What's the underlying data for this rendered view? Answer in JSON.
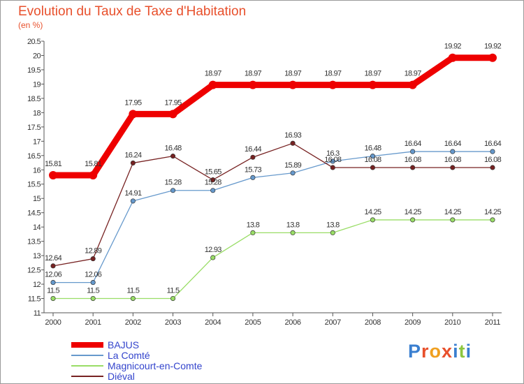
{
  "title": "Evolution du Taux de Taxe d'Habitation",
  "subtitle": "(en %)",
  "brand": "Proxiti",
  "chart_data": {
    "type": "line",
    "x": [
      "2000",
      "2001",
      "2002",
      "2003",
      "2004",
      "2005",
      "2006",
      "2007",
      "2008",
      "2009",
      "2010",
      "2011"
    ],
    "ylim": [
      11,
      20.5
    ],
    "yticks": [
      "11",
      "11.5",
      "12",
      "12.5",
      "13",
      "13.5",
      "14",
      "14.5",
      "15",
      "15.5",
      "16",
      "16.5",
      "17",
      "17.5",
      "18",
      "18.5",
      "19",
      "19.5",
      "20",
      "20.5"
    ],
    "grid": false,
    "series": [
      {
        "name": "BAJUS",
        "color": "#ee0000",
        "values": [
          15.81,
          15.81,
          17.95,
          17.95,
          18.97,
          18.97,
          18.97,
          18.97,
          18.97,
          18.97,
          19.92,
          19.92
        ],
        "labels": [
          "15.81",
          "15.81",
          "17.95",
          "17.95",
          "18.97",
          "18.97",
          "18.97",
          "18.97",
          "18.97",
          "18.97",
          "19.92",
          "19.92"
        ]
      },
      {
        "name": "La Comté",
        "color": "#6699cc",
        "values": [
          12.06,
          12.06,
          14.91,
          15.28,
          15.28,
          15.73,
          15.89,
          16.3,
          16.48,
          16.64,
          16.64,
          16.64
        ],
        "labels": [
          "12.06",
          "12.06",
          "14.91",
          "15.28",
          "15.28",
          "15.73",
          "15.89",
          "16.3",
          "16.48",
          "16.64",
          "16.64",
          "16.64"
        ]
      },
      {
        "name": "Magnicourt-en-Comte",
        "color": "#99dd66",
        "values": [
          11.5,
          11.5,
          11.5,
          11.5,
          12.93,
          13.8,
          13.8,
          13.8,
          14.25,
          14.25,
          14.25,
          14.25
        ],
        "labels": [
          "11.5",
          "11.5",
          "11.5",
          "11.5",
          "12.93",
          "13.8",
          "13.8",
          "13.8",
          "14.25",
          "14.25",
          "14.25",
          "14.25"
        ]
      },
      {
        "name": "Diéval",
        "color": "#772222",
        "values": [
          12.64,
          12.89,
          16.24,
          16.48,
          15.65,
          16.44,
          16.93,
          16.08,
          16.08,
          16.08,
          16.08,
          16.08
        ],
        "labels": [
          "12.64",
          "12.89",
          "16.24",
          "16.48",
          "15.65",
          "16.44",
          "16.93",
          "16.08",
          "16.08",
          "16.08",
          "16.08",
          "16.08"
        ]
      }
    ]
  }
}
